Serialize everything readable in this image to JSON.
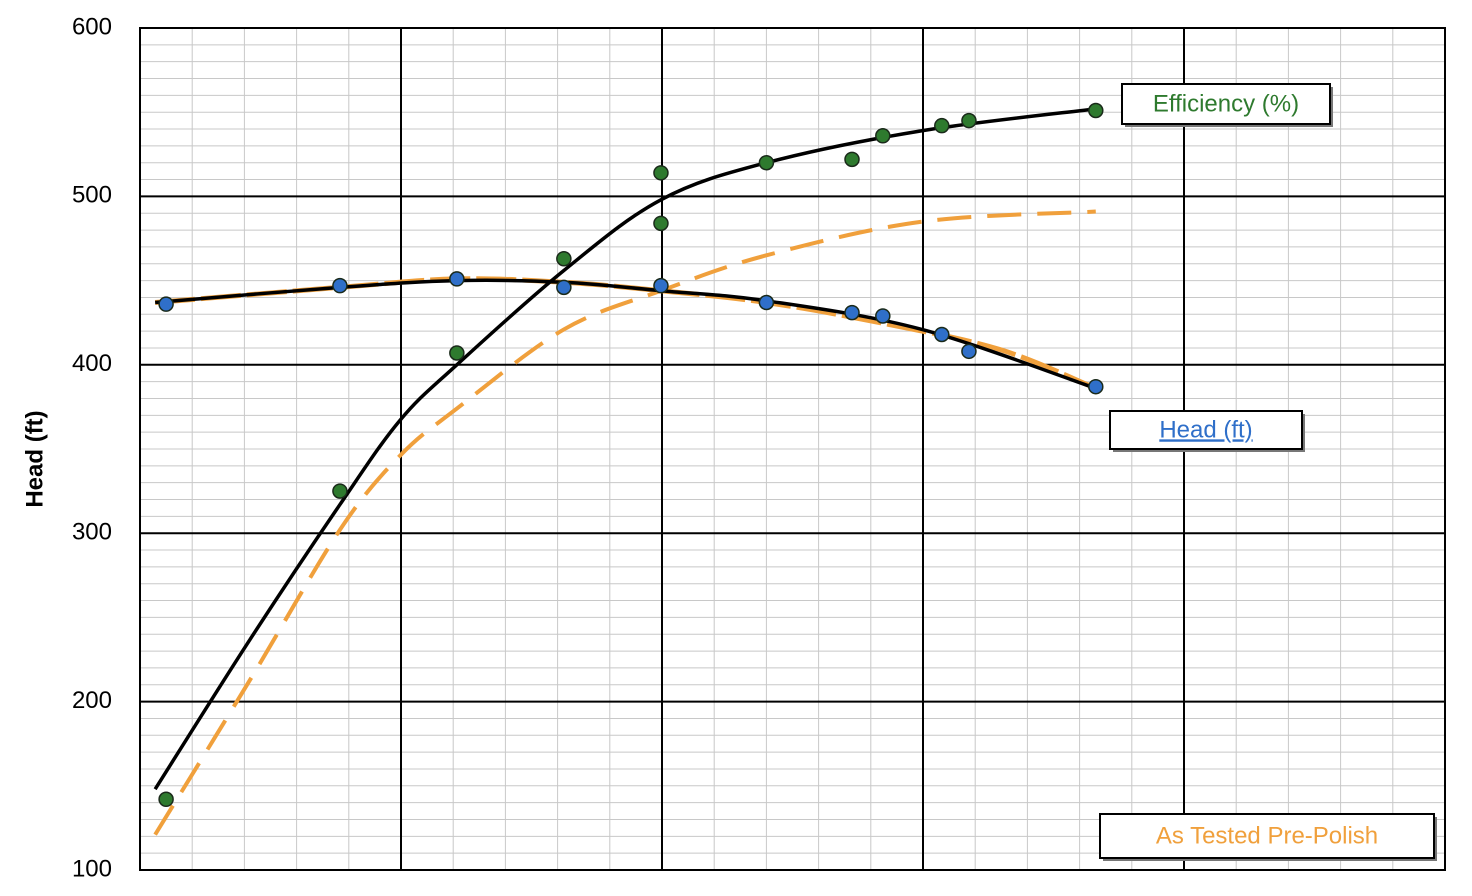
{
  "chart_data": {
    "type": "line",
    "y_label": "Head (ft)",
    "xlim": [
      0,
      25
    ],
    "xticks": [
      0,
      5,
      10,
      15,
      20,
      25
    ],
    "x_minor_step": 1,
    "ylim": [
      100,
      600
    ],
    "yticks": [
      100,
      200,
      300,
      400,
      500,
      600
    ],
    "y_minor_step": 10,
    "grid": true,
    "series": [
      {
        "name": "Head (ft)",
        "color": "#2f6fc9",
        "style": "markers",
        "x": [
          0.5,
          3.83,
          6.07,
          8.12,
          9.98,
          12,
          13.64,
          14.23,
          15.36,
          15.88,
          18.31
        ],
        "values": [
          436,
          447,
          451,
          446,
          447,
          437,
          431,
          429,
          418,
          408,
          387
        ]
      },
      {
        "name": "Efficiency (%)",
        "color": "#2e7a2e",
        "style": "markers",
        "x": [
          0.5,
          3.83,
          6.07,
          8.12,
          9.98,
          9.98,
          12,
          13.64,
          14.23,
          15.36,
          15.88,
          18.31
        ],
        "values": [
          142,
          325,
          407,
          463,
          514,
          484,
          520,
          522,
          536,
          542,
          545,
          551
        ]
      },
      {
        "color": "#000000",
        "style": "line",
        "x": [
          0.29,
          2.11,
          3.83,
          4.98,
          6.07,
          8.12,
          9.98,
          12,
          14.98,
          18.31
        ],
        "values": [
          148,
          237,
          317,
          367,
          400,
          456,
          498,
          520,
          539,
          552
        ]
      },
      {
        "color": "#000000",
        "style": "line",
        "x": [
          0.29,
          3.83,
          6.07,
          8.12,
          9.98,
          12,
          14.98,
          18.31
        ],
        "values": [
          437,
          446,
          450,
          449,
          444,
          438,
          421,
          386
        ]
      },
      {
        "name": "As Tested Pre-Polish",
        "color": "#f0a03c",
        "style": "dashed",
        "x": [
          0.29,
          2.11,
          3.83,
          4.98,
          6.07,
          8.12,
          9.98,
          12,
          14.98,
          18.31
        ],
        "values": [
          121,
          213,
          302,
          346,
          374,
          421,
          444,
          465,
          485,
          491
        ]
      },
      {
        "color": "#f0a03c",
        "style": "thick",
        "x": [
          0.29,
          3.83,
          6.07,
          8.12,
          9.98,
          12,
          14.18,
          16.48,
          18.31
        ],
        "values": [
          437,
          446,
          451,
          449,
          444,
          437,
          425,
          409,
          386
        ]
      }
    ]
  }
}
